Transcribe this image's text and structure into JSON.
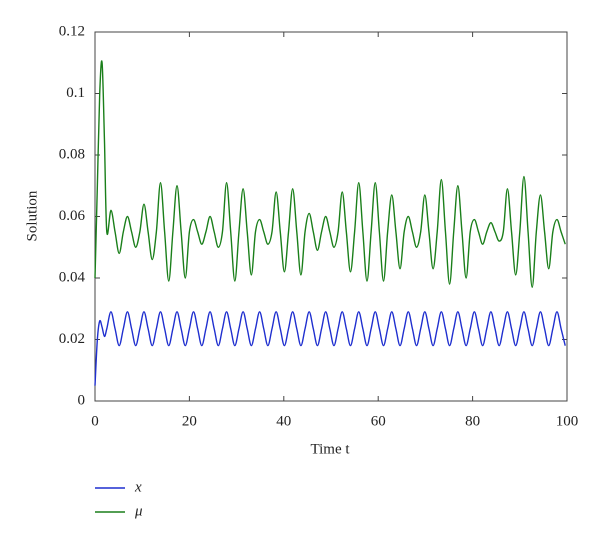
{
  "chart_data": {
    "type": "line",
    "xlabel": "Time t",
    "ylabel": "Solution",
    "x": [
      0,
      0.5,
      1,
      1.5,
      2,
      2.5,
      3.375,
      4.25,
      5.125,
      6,
      6.875,
      7.75,
      8.625,
      9.5,
      10.375,
      11.25,
      12.125,
      13,
      13.875,
      14.75,
      15.625,
      16.5,
      17.375,
      18.25,
      19.125,
      20,
      20.875,
      21.75,
      22.625,
      23.5,
      24.375,
      25.25,
      26.125,
      27,
      27.875,
      28.75,
      29.625,
      30.5,
      31.375,
      32.25,
      33.125,
      34,
      34.875,
      35.75,
      36.625,
      37.5,
      38.375,
      39.25,
      40.125,
      41,
      41.875,
      42.75,
      43.625,
      44.5,
      45.375,
      46.25,
      47.125,
      48,
      48.875,
      49.75,
      50.625,
      51.5,
      52.375,
      53.25,
      54.125,
      55,
      55.875,
      56.75,
      57.625,
      58.5,
      59.375,
      60.25,
      61.125,
      62,
      62.875,
      63.75,
      64.625,
      65.5,
      66.375,
      67.25,
      68.125,
      69,
      69.875,
      70.75,
      71.625,
      72.5,
      73.375,
      74.25,
      75.125,
      76,
      76.875,
      77.75,
      78.625,
      79.5,
      80.375,
      81.25,
      82.125,
      83,
      83.875,
      84.75,
      85.625,
      86.5,
      87.375,
      88.25,
      89.125,
      90,
      90.875,
      91.75,
      92.625,
      93.5,
      94.375,
      95.25,
      96.125,
      97,
      97.875,
      98.75,
      99.625
    ],
    "series": [
      {
        "name": "x",
        "color": "#1f2fcf",
        "values": [
          0.005,
          0.02,
          0.026,
          0.024,
          0.021,
          0.0235,
          0.029,
          0.0235,
          0.018,
          0.0235,
          0.029,
          0.0235,
          0.018,
          0.0235,
          0.029,
          0.0235,
          0.018,
          0.0235,
          0.029,
          0.0235,
          0.018,
          0.0235,
          0.029,
          0.0235,
          0.018,
          0.0235,
          0.029,
          0.0235,
          0.018,
          0.0235,
          0.029,
          0.0235,
          0.018,
          0.0235,
          0.029,
          0.0235,
          0.018,
          0.0235,
          0.029,
          0.0235,
          0.018,
          0.0235,
          0.029,
          0.0235,
          0.018,
          0.0235,
          0.029,
          0.0235,
          0.018,
          0.0235,
          0.029,
          0.0235,
          0.018,
          0.0235,
          0.029,
          0.0235,
          0.018,
          0.0235,
          0.029,
          0.0235,
          0.018,
          0.0235,
          0.029,
          0.0235,
          0.018,
          0.0235,
          0.029,
          0.0235,
          0.018,
          0.0235,
          0.029,
          0.0235,
          0.018,
          0.0235,
          0.029,
          0.0235,
          0.018,
          0.0235,
          0.029,
          0.0235,
          0.018,
          0.0235,
          0.029,
          0.0235,
          0.018,
          0.0235,
          0.029,
          0.0235,
          0.018,
          0.0235,
          0.029,
          0.0235,
          0.018,
          0.0235,
          0.029,
          0.0235,
          0.018,
          0.0235,
          0.029,
          0.0235,
          0.018,
          0.0235,
          0.029,
          0.0235,
          0.018,
          0.0235,
          0.029,
          0.0235,
          0.018,
          0.0235,
          0.029,
          0.0235,
          0.018,
          0.0235,
          0.029,
          0.0235,
          0.018
        ]
      },
      {
        "name": "μ",
        "color": "#1a7f1a",
        "values": [
          0.04,
          0.07,
          0.1,
          0.11,
          0.085,
          0.055,
          0.062,
          0.055,
          0.048,
          0.055,
          0.06,
          0.055,
          0.05,
          0.055,
          0.064,
          0.055,
          0.046,
          0.055,
          0.071,
          0.055,
          0.039,
          0.055,
          0.07,
          0.055,
          0.04,
          0.055,
          0.059,
          0.055,
          0.051,
          0.055,
          0.06,
          0.055,
          0.05,
          0.055,
          0.071,
          0.055,
          0.039,
          0.055,
          0.069,
          0.055,
          0.041,
          0.055,
          0.059,
          0.055,
          0.051,
          0.055,
          0.068,
          0.055,
          0.042,
          0.055,
          0.069,
          0.055,
          0.041,
          0.055,
          0.061,
          0.055,
          0.049,
          0.055,
          0.06,
          0.055,
          0.05,
          0.055,
          0.068,
          0.055,
          0.042,
          0.055,
          0.071,
          0.055,
          0.039,
          0.055,
          0.071,
          0.055,
          0.039,
          0.055,
          0.067,
          0.055,
          0.043,
          0.055,
          0.06,
          0.055,
          0.05,
          0.055,
          0.067,
          0.055,
          0.043,
          0.055,
          0.072,
          0.055,
          0.038,
          0.055,
          0.07,
          0.055,
          0.04,
          0.055,
          0.059,
          0.055,
          0.051,
          0.055,
          0.058,
          0.055,
          0.052,
          0.055,
          0.069,
          0.055,
          0.041,
          0.055,
          0.073,
          0.055,
          0.037,
          0.055,
          0.067,
          0.055,
          0.043,
          0.055,
          0.059,
          0.055,
          0.051
        ]
      }
    ],
    "xlim": [
      0,
      100
    ],
    "xticks": [
      0,
      20,
      40,
      60,
      80,
      100
    ],
    "ylim": [
      0,
      0.12
    ],
    "yticks": [
      0,
      0.02,
      0.04,
      0.06,
      0.08,
      0.1,
      0.12
    ]
  }
}
